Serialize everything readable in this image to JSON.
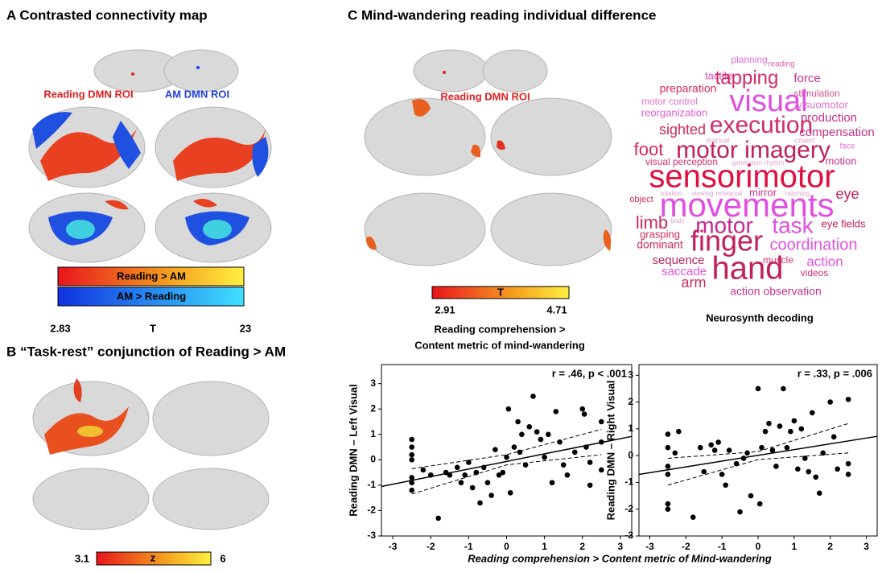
{
  "panels": {
    "a": {
      "title": "A Contrasted connectivity map",
      "roi_reading": "Reading DMN ROI",
      "roi_am": "AM DMN ROI",
      "bar_top": "Reading > AM",
      "bar_bottom": "AM > Reading",
      "scale_min": "2.83",
      "scale_label": "T",
      "scale_max": "23"
    },
    "b": {
      "title": "B “Task-rest” conjunction of Reading > AM",
      "scale_min": "3.1",
      "scale_label": "z",
      "scale_max": "6"
    },
    "c": {
      "title": "C Mind-wandering reading individual difference",
      "roi_reading": "Reading DMN ROI",
      "scale_min": "2.91",
      "scale_label": "T",
      "scale_max": "4.71",
      "caption": [
        "Reading comprehension >",
        "Content metric of mind-wandering"
      ],
      "wordcloud_title": "Neurosynth decoding",
      "words": [
        "planning",
        "reading",
        "tactile",
        "tapping",
        "force",
        "stimulation",
        "preparation",
        "visual",
        "visuomotor",
        "motor control",
        "reorganization",
        "production",
        "sighted",
        "execution",
        "compensation",
        "manual",
        "covert",
        "face",
        "foot",
        "motor imagery",
        "generation",
        "rhythm",
        "visual perception",
        "motion",
        "sensorimotor",
        "eye",
        "object",
        "rotation",
        "viewing",
        "rehearsal",
        "mirror",
        "reaching",
        "movements",
        "limb",
        "body",
        "motor",
        "task",
        "eye fields",
        "grasping",
        "finger",
        "coordination",
        "dominant",
        "sequence",
        "muscle",
        "action",
        "saccade",
        "hand",
        "videos",
        "arm",
        "action observation"
      ],
      "x_label": "Reading comprehension > Content metric of Mind-wandering"
    }
  },
  "chart_data": [
    {
      "type": "scatter",
      "annotation": "r = .46, p < .001",
      "y_label": "Reading DMN – Left Visual",
      "xlim": [
        -3.3,
        3.3
      ],
      "ylim": [
        -3,
        3.75
      ],
      "xticks": [
        -3,
        -2,
        -1,
        0,
        1,
        2,
        3
      ],
      "yticks": [
        -3,
        -2,
        -1,
        0,
        1,
        2,
        3
      ],
      "color": "#000000",
      "x": [
        -2.5,
        -2.5,
        -2.5,
        -2.5,
        -2.5,
        -2.5,
        -2.5,
        -2.2,
        -2,
        -1.8,
        -1.6,
        -1.5,
        -1.3,
        -1.2,
        -1.1,
        -1,
        -0.9,
        -0.8,
        -0.7,
        -0.6,
        -0.5,
        -0.4,
        -0.3,
        -0.2,
        -0.1,
        0,
        0.05,
        0.1,
        0.2,
        0.3,
        0.35,
        0.4,
        0.5,
        0.6,
        0.7,
        0.8,
        0.9,
        1.0,
        1.1,
        1.2,
        1.3,
        1.4,
        1.5,
        1.6,
        1.8,
        2,
        2.05,
        2.1,
        2.2,
        2.5,
        2.5,
        2.5,
        2.2
      ],
      "y": [
        0.8,
        0.5,
        0.2,
        -0.7,
        -0.9,
        -1.2,
        0.0,
        -0.4,
        -0.6,
        -2.3,
        -0.5,
        -0.6,
        -0.3,
        -0.9,
        -0.6,
        -0.1,
        -1.1,
        -0.5,
        -1.7,
        -0.3,
        -0.9,
        -1.4,
        0.4,
        -0.6,
        -0.5,
        0.1,
        2.0,
        -1.3,
        0.5,
        1.5,
        0.3,
        1.0,
        -0.2,
        1.3,
        2.5,
        1.1,
        0.8,
        0.1,
        1.0,
        -0.9,
        1.9,
        0.7,
        -0.2,
        -0.6,
        0.3,
        2.0,
        1.8,
        0.5,
        -0.1,
        1.5,
        0.7,
        -0.4,
        -1.0
      ],
      "fit": {
        "x": [
          -3.3,
          3.3
        ],
        "y": [
          -1.05,
          0.92
        ]
      },
      "ci": {
        "x": [
          -2.5,
          0,
          2.5
        ],
        "upper": [
          -0.35,
          0.2,
          1.2
        ],
        "lower": [
          -1.35,
          -0.2,
          0.2
        ]
      }
    },
    {
      "type": "scatter",
      "annotation": "r = .33, p = .006",
      "y_label": "Reading DMN – Right Visual",
      "xlim": [
        -3.3,
        3.3
      ],
      "ylim": [
        -3,
        3.4
      ],
      "xticks": [
        -3,
        -2,
        -1,
        0,
        1,
        2,
        3
      ],
      "yticks": [
        -3,
        -2,
        -1,
        0,
        1,
        2,
        3
      ],
      "color": "#000000",
      "x": [
        -2.5,
        -2.5,
        -2.5,
        -2.5,
        -2.5,
        -2.5,
        -2.3,
        -2.2,
        -1.8,
        -1.6,
        -1.5,
        -1.3,
        -1.2,
        -1.1,
        -1,
        -0.9,
        -0.8,
        -0.6,
        -0.5,
        -0.4,
        -0.3,
        -0.2,
        0,
        0.05,
        0.1,
        0.2,
        0.3,
        0.4,
        0.5,
        0.6,
        0.7,
        0.8,
        0.9,
        1.0,
        1.1,
        1.2,
        1.3,
        1.5,
        1.6,
        1.8,
        2,
        2.1,
        2.2,
        2.5,
        2.5,
        2.5,
        1.7,
        1.4
      ],
      "y": [
        0.8,
        0.3,
        -0.4,
        -0.7,
        -1.8,
        -2.0,
        0.1,
        0.9,
        -2.3,
        0.3,
        -0.6,
        0.4,
        0.2,
        0.5,
        -0.7,
        -1.1,
        0.2,
        -0.3,
        -2.1,
        -0.1,
        0.1,
        -1.5,
        2.5,
        -1.8,
        0.3,
        0.9,
        1.2,
        0.2,
        -0.4,
        1.1,
        2.5,
        0.3,
        0.9,
        1.3,
        -0.5,
        1.0,
        -0.1,
        1.6,
        -0.8,
        0.1,
        2.0,
        0.7,
        -0.5,
        2.1,
        -0.3,
        -0.7,
        -1.4,
        -0.6
      ],
      "fit": {
        "x": [
          -3.3,
          3.3
        ],
        "y": [
          -0.7,
          0.72
        ]
      },
      "ci": {
        "x": [
          -2.5,
          0,
          2.5
        ],
        "upper": [
          -0.1,
          0.15,
          1.2
        ],
        "lower": [
          -1.1,
          -0.15,
          0.1
        ]
      }
    }
  ]
}
